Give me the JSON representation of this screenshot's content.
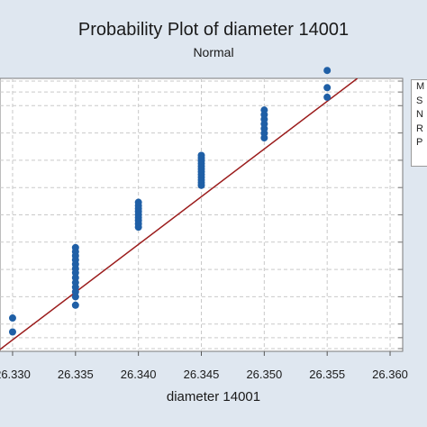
{
  "header": {
    "title": "Probability Plot of diameter 14001",
    "subtitle": "Normal"
  },
  "legend": {
    "entries": [
      "M",
      "S",
      "N",
      "R",
      "P"
    ]
  },
  "colors": {
    "plot_bg": "#ffffff",
    "outer_bg": "#dfe7f0",
    "points": "#1f5fa6",
    "fit_line": "#9b1c1c",
    "grid": "#c9c9c9"
  },
  "chart_data": {
    "type": "scatter",
    "title": "Probability Plot of diameter 14001",
    "subtitle": "Normal",
    "xlabel": "diameter 14001",
    "ylabel": "",
    "x_ticks": [
      "26.330",
      "26.335",
      "26.340",
      "26.345",
      "26.350",
      "26.355",
      "26.360"
    ],
    "x_tick_values": [
      26.33,
      26.335,
      26.34,
      26.345,
      26.35,
      26.355,
      26.36
    ],
    "xlim": [
      26.329,
      26.361
    ],
    "ylim": [
      0,
      100
    ],
    "grid": true,
    "legend_placement": "right",
    "fit_line": [
      [
        26.3288,
        0
      ],
      [
        26.3574,
        100
      ]
    ],
    "series": [
      {
        "points": [
          [
            26.33,
            7.1
          ],
          [
            26.33,
            12.2
          ],
          [
            26.335,
            16.9
          ],
          [
            26.335,
            20.0
          ],
          [
            26.335,
            21.8
          ],
          [
            26.335,
            23.5
          ],
          [
            26.335,
            25.2
          ],
          [
            26.335,
            27.0
          ],
          [
            26.335,
            28.8
          ],
          [
            26.335,
            30.3
          ],
          [
            26.335,
            31.9
          ],
          [
            26.335,
            33.5
          ],
          [
            26.335,
            35.0
          ],
          [
            26.335,
            36.5
          ],
          [
            26.335,
            38.0
          ],
          [
            26.34,
            45.5
          ],
          [
            26.34,
            46.7
          ],
          [
            26.34,
            47.9
          ],
          [
            26.34,
            49.0
          ],
          [
            26.34,
            50.1
          ],
          [
            26.34,
            51.2
          ],
          [
            26.34,
            52.3
          ],
          [
            26.34,
            53.4
          ],
          [
            26.34,
            54.6
          ],
          [
            26.345,
            60.8
          ],
          [
            26.345,
            61.8
          ],
          [
            26.345,
            62.8
          ],
          [
            26.345,
            63.8
          ],
          [
            26.345,
            64.8
          ],
          [
            26.345,
            65.8
          ],
          [
            26.345,
            66.8
          ],
          [
            26.345,
            67.8
          ],
          [
            26.345,
            68.8
          ],
          [
            26.345,
            69.8
          ],
          [
            26.345,
            70.8
          ],
          [
            26.345,
            71.8
          ],
          [
            26.35,
            78.2
          ],
          [
            26.35,
            79.9
          ],
          [
            26.35,
            81.6
          ],
          [
            26.35,
            83.3
          ],
          [
            26.35,
            85.0
          ],
          [
            26.35,
            86.7
          ],
          [
            26.35,
            88.4
          ],
          [
            26.355,
            93.1
          ],
          [
            26.355,
            96.6
          ],
          [
            26.355,
            102.9
          ]
        ]
      }
    ]
  }
}
